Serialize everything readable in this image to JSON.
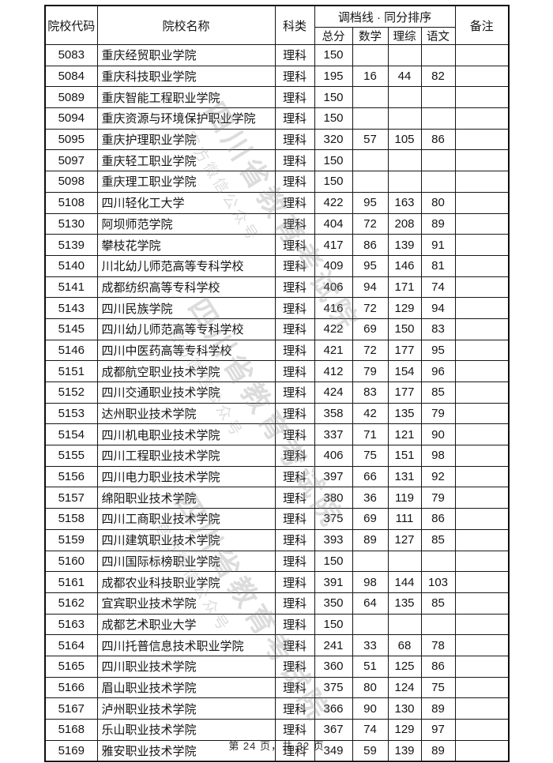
{
  "page": {
    "footer": "第 24 页，共 32 页"
  },
  "watermark": {
    "big": "四川省教育考试院",
    "small": "官方微信公众号"
  },
  "table": {
    "headers": {
      "code": "院校代码",
      "name": "院校名称",
      "category": "科类",
      "group": "调档线 · 同分排序",
      "sub": [
        "总分",
        "数学",
        "理综",
        "语文"
      ],
      "remark": "备注"
    },
    "rows": [
      {
        "code": "5083",
        "name": "重庆经贸职业学院",
        "category": "理科",
        "total": "150",
        "math": "",
        "sci": "",
        "chn": "",
        "remark": ""
      },
      {
        "code": "5084",
        "name": "重庆科技职业学院",
        "category": "理科",
        "total": "195",
        "math": "16",
        "sci": "44",
        "chn": "82",
        "remark": ""
      },
      {
        "code": "5089",
        "name": "重庆智能工程职业学院",
        "category": "理科",
        "total": "150",
        "math": "",
        "sci": "",
        "chn": "",
        "remark": ""
      },
      {
        "code": "5094",
        "name": "重庆资源与环境保护职业学院",
        "category": "理科",
        "total": "150",
        "math": "",
        "sci": "",
        "chn": "",
        "remark": ""
      },
      {
        "code": "5095",
        "name": "重庆护理职业学院",
        "category": "理科",
        "total": "320",
        "math": "57",
        "sci": "105",
        "chn": "86",
        "remark": ""
      },
      {
        "code": "5097",
        "name": "重庆轻工职业学院",
        "category": "理科",
        "total": "150",
        "math": "",
        "sci": "",
        "chn": "",
        "remark": ""
      },
      {
        "code": "5098",
        "name": "重庆理工职业学院",
        "category": "理科",
        "total": "150",
        "math": "",
        "sci": "",
        "chn": "",
        "remark": ""
      },
      {
        "code": "5108",
        "name": "四川轻化工大学",
        "category": "理科",
        "total": "422",
        "math": "95",
        "sci": "163",
        "chn": "80",
        "remark": ""
      },
      {
        "code": "5130",
        "name": "阿坝师范学院",
        "category": "理科",
        "total": "404",
        "math": "72",
        "sci": "208",
        "chn": "89",
        "remark": ""
      },
      {
        "code": "5139",
        "name": "攀枝花学院",
        "category": "理科",
        "total": "417",
        "math": "86",
        "sci": "139",
        "chn": "91",
        "remark": ""
      },
      {
        "code": "5140",
        "name": "川北幼儿师范高等专科学校",
        "category": "理科",
        "total": "409",
        "math": "95",
        "sci": "146",
        "chn": "81",
        "remark": ""
      },
      {
        "code": "5141",
        "name": "成都纺织高等专科学校",
        "category": "理科",
        "total": "406",
        "math": "94",
        "sci": "171",
        "chn": "74",
        "remark": ""
      },
      {
        "code": "5143",
        "name": "四川民族学院",
        "category": "理科",
        "total": "416",
        "math": "72",
        "sci": "129",
        "chn": "94",
        "remark": ""
      },
      {
        "code": "5145",
        "name": "四川幼儿师范高等专科学校",
        "category": "理科",
        "total": "422",
        "math": "69",
        "sci": "150",
        "chn": "83",
        "remark": ""
      },
      {
        "code": "5146",
        "name": "四川中医药高等专科学校",
        "category": "理科",
        "total": "421",
        "math": "72",
        "sci": "177",
        "chn": "95",
        "remark": ""
      },
      {
        "code": "5151",
        "name": "成都航空职业技术学院",
        "category": "理科",
        "total": "412",
        "math": "79",
        "sci": "154",
        "chn": "96",
        "remark": ""
      },
      {
        "code": "5152",
        "name": "四川交通职业技术学院",
        "category": "理科",
        "total": "424",
        "math": "83",
        "sci": "177",
        "chn": "85",
        "remark": ""
      },
      {
        "code": "5153",
        "name": "达州职业技术学院",
        "category": "理科",
        "total": "358",
        "math": "42",
        "sci": "135",
        "chn": "79",
        "remark": ""
      },
      {
        "code": "5154",
        "name": "四川机电职业技术学院",
        "category": "理科",
        "total": "337",
        "math": "71",
        "sci": "121",
        "chn": "90",
        "remark": ""
      },
      {
        "code": "5155",
        "name": "四川工程职业技术学院",
        "category": "理科",
        "total": "406",
        "math": "75",
        "sci": "151",
        "chn": "98",
        "remark": ""
      },
      {
        "code": "5156",
        "name": "四川电力职业技术学院",
        "category": "理科",
        "total": "397",
        "math": "66",
        "sci": "131",
        "chn": "92",
        "remark": ""
      },
      {
        "code": "5157",
        "name": "绵阳职业技术学院",
        "category": "理科",
        "total": "380",
        "math": "36",
        "sci": "119",
        "chn": "79",
        "remark": ""
      },
      {
        "code": "5158",
        "name": "四川工商职业技术学院",
        "category": "理科",
        "total": "375",
        "math": "69",
        "sci": "111",
        "chn": "86",
        "remark": ""
      },
      {
        "code": "5159",
        "name": "四川建筑职业技术学院",
        "category": "理科",
        "total": "393",
        "math": "89",
        "sci": "127",
        "chn": "85",
        "remark": ""
      },
      {
        "code": "5160",
        "name": "四川国际标榜职业学院",
        "category": "理科",
        "total": "150",
        "math": "",
        "sci": "",
        "chn": "",
        "remark": ""
      },
      {
        "code": "5161",
        "name": "成都农业科技职业学院",
        "category": "理科",
        "total": "391",
        "math": "98",
        "sci": "144",
        "chn": "103",
        "remark": ""
      },
      {
        "code": "5162",
        "name": "宜宾职业技术学院",
        "category": "理科",
        "total": "350",
        "math": "64",
        "sci": "135",
        "chn": "85",
        "remark": ""
      },
      {
        "code": "5163",
        "name": "成都艺术职业大学",
        "category": "理科",
        "total": "150",
        "math": "",
        "sci": "",
        "chn": "",
        "remark": ""
      },
      {
        "code": "5164",
        "name": "四川托普信息技术职业学院",
        "category": "理科",
        "total": "241",
        "math": "33",
        "sci": "68",
        "chn": "78",
        "remark": ""
      },
      {
        "code": "5165",
        "name": "四川职业技术学院",
        "category": "理科",
        "total": "360",
        "math": "51",
        "sci": "125",
        "chn": "86",
        "remark": ""
      },
      {
        "code": "5166",
        "name": "眉山职业技术学院",
        "category": "理科",
        "total": "375",
        "math": "80",
        "sci": "124",
        "chn": "75",
        "remark": ""
      },
      {
        "code": "5167",
        "name": "泸州职业技术学院",
        "category": "理科",
        "total": "366",
        "math": "90",
        "sci": "130",
        "chn": "89",
        "remark": ""
      },
      {
        "code": "5168",
        "name": "乐山职业技术学院",
        "category": "理科",
        "total": "367",
        "math": "74",
        "sci": "129",
        "chn": "97",
        "remark": ""
      },
      {
        "code": "5169",
        "name": "雅安职业技术学院",
        "category": "理科",
        "total": "349",
        "math": "59",
        "sci": "139",
        "chn": "89",
        "remark": ""
      }
    ]
  }
}
